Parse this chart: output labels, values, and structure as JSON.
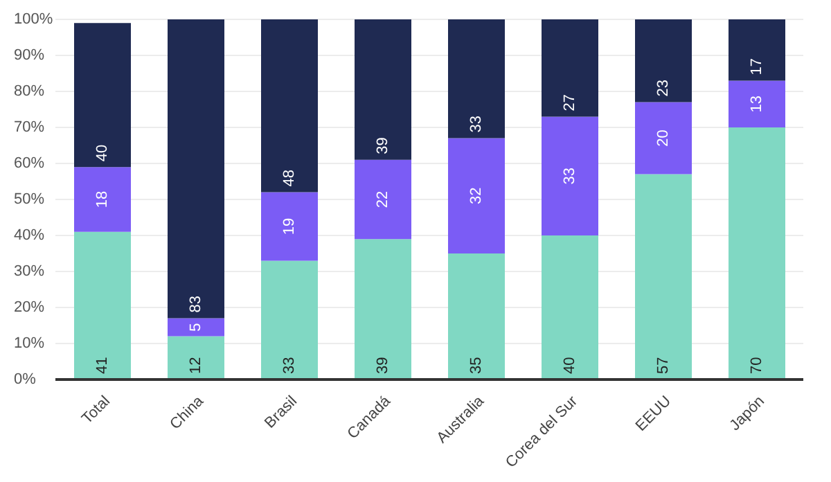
{
  "chart_data": {
    "type": "bar",
    "stacked": true,
    "categories": [
      "Total",
      "China",
      "Brasil",
      "Canadá",
      "Australia",
      "Corea del Sur",
      "EEUU",
      "Japón"
    ],
    "series": [
      {
        "color": "#80d8c3",
        "values": [
          41,
          12,
          33,
          39,
          35,
          40,
          57,
          70
        ]
      },
      {
        "color": "#7b5cf5",
        "values": [
          18,
          5,
          19,
          22,
          32,
          33,
          20,
          13
        ]
      },
      {
        "color": "#1f2a52",
        "values": [
          40,
          83,
          48,
          39,
          33,
          27,
          23,
          17
        ]
      }
    ],
    "ylim": [
      0,
      100
    ],
    "yticks": [
      {
        "value": 0,
        "label": "0%"
      },
      {
        "value": 10,
        "label": "10%"
      },
      {
        "value": 20,
        "label": "20%"
      },
      {
        "value": 30,
        "label": "30%"
      },
      {
        "value": 40,
        "label": "40%"
      },
      {
        "value": 50,
        "label": "50%"
      },
      {
        "value": 60,
        "label": "60%"
      },
      {
        "value": 70,
        "label": "70%"
      },
      {
        "value": 80,
        "label": "80%"
      },
      {
        "value": 90,
        "label": "90%"
      },
      {
        "value": 100,
        "label": "100%"
      }
    ],
    "grid": "y",
    "legend": false,
    "data_labels": true
  }
}
